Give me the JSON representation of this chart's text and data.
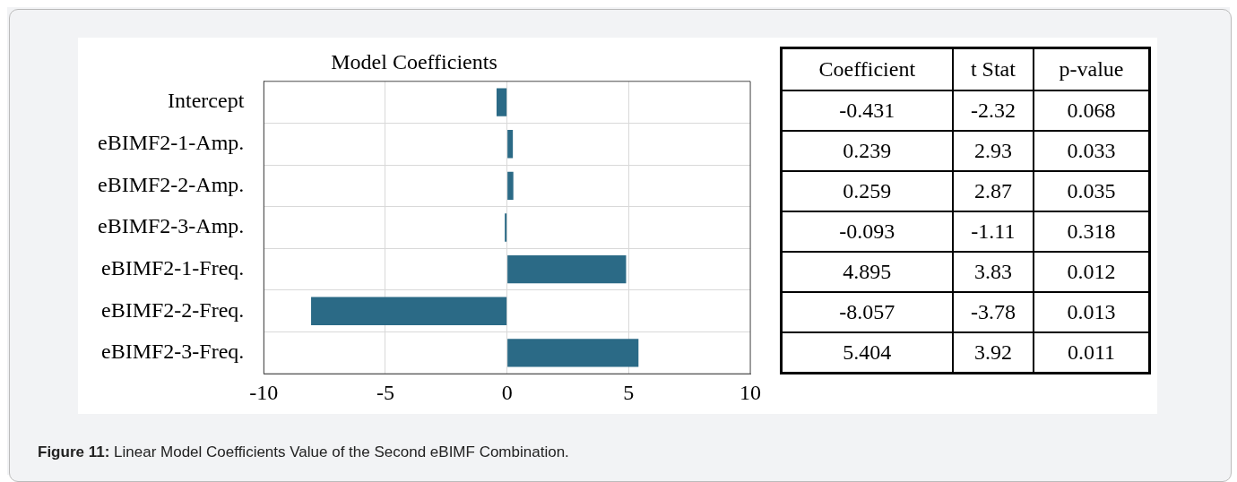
{
  "chart_data": [
    {
      "type": "bar",
      "orientation": "horizontal",
      "title": "Model Coefficients",
      "categories": [
        "Intercept",
        "eBIMF2-1-Amp.",
        "eBIMF2-2-Amp.",
        "eBIMF2-3-Amp.",
        "eBIMF2-1-Freq.",
        "eBIMF2-2-Freq.",
        "eBIMF2-3-Freq."
      ],
      "values": [
        -0.431,
        0.239,
        0.259,
        -0.093,
        4.895,
        -8.057,
        5.404
      ],
      "color": "#2b6a86",
      "xlim": [
        -10,
        10
      ],
      "xticks": [
        -10,
        -5,
        0,
        5,
        10
      ],
      "grid": true,
      "legend": false,
      "annotations": [
        "Figure 11: Linear Model Coefficients Value of the Second eBIMF Combination."
      ]
    },
    {
      "type": "other",
      "categories": [
        "Coefficient",
        "t Stat",
        "p-value"
      ],
      "annotations": [
        "-0.431",
        "-2.32",
        "0.068",
        "0.239",
        "2.93",
        "0.033",
        "0.259",
        "2.87",
        "0.035",
        "-0.093",
        "-1.11",
        "0.318",
        "4.895",
        "3.83",
        "0.012",
        "-8.057",
        "-3.78",
        "0.013",
        "5.404",
        "3.92",
        "0.011"
      ]
    }
  ]
}
